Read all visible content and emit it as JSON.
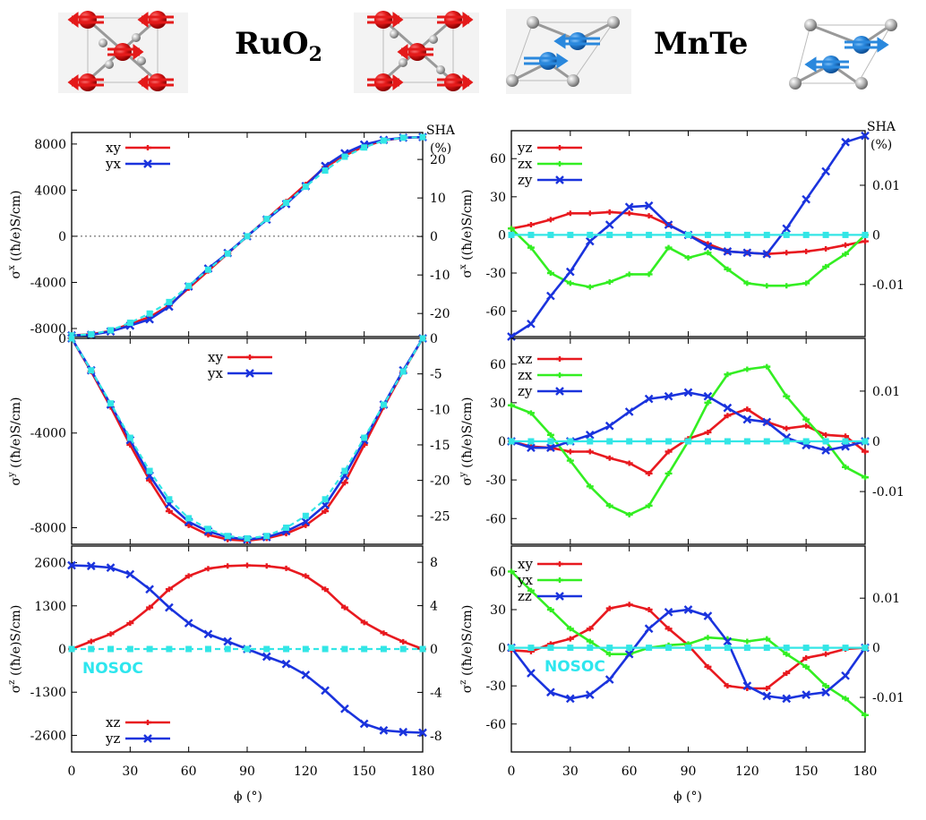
{
  "header": {
    "ruo2_label": "RuO",
    "ruo2_sub": "2",
    "mnte_label": "MnTe"
  },
  "colors": {
    "red": "#e8191f",
    "green": "#33ee22",
    "blue": "#1a33dd",
    "cyan": "#33e6e6"
  },
  "axes": {
    "x_label": "ϕ (°)",
    "x_ticks": [
      "0",
      "30",
      "60",
      "90",
      "120",
      "150",
      "180"
    ],
    "sha_label": "SHA",
    "sha_unit": "(%)",
    "nosoc_label": "NOSOC"
  },
  "chart_data": [
    {
      "id": "ruo2_x",
      "type": "line",
      "ylabel_sym": "σ",
      "ylabel_sup": "x",
      "ylabel_rest": " ((ħ/e)S/cm)",
      "ylim": [
        -8700,
        9000
      ],
      "y_ticks": [
        "-8000",
        "-4000",
        "0",
        "4000",
        "8000"
      ],
      "y_tick_values": [
        -8000,
        -4000,
        0,
        4000,
        8000
      ],
      "y2lim": [
        -26,
        27
      ],
      "y2_ticks": [
        "-20",
        "-10",
        "0",
        "10",
        "20"
      ],
      "y2_tick_values": [
        -20,
        -10,
        0,
        10,
        20
      ],
      "xlim": [
        0,
        180
      ],
      "x": [
        0,
        10,
        20,
        30,
        40,
        50,
        60,
        70,
        80,
        90,
        100,
        110,
        120,
        130,
        140,
        150,
        160,
        170,
        180
      ],
      "series": [
        {
          "name": "xy",
          "color": "red",
          "marker": "plus",
          "legend": true,
          "values": [
            -8600,
            -8500,
            -8200,
            -7600,
            -7000,
            -6000,
            -4500,
            -3000,
            -1500,
            0,
            1500,
            3000,
            4500,
            6000,
            7000,
            7800,
            8300,
            8550,
            8600
          ]
        },
        {
          "name": "yx",
          "color": "blue",
          "marker": "cross",
          "legend": true,
          "values": [
            -8600,
            -8550,
            -8250,
            -7750,
            -7200,
            -6100,
            -4350,
            -2800,
            -1450,
            0,
            1450,
            2800,
            4350,
            6100,
            7200,
            7950,
            8350,
            8550,
            8600
          ]
        },
        {
          "name": "NOSOC",
          "color": "cyan",
          "marker": "square",
          "dash": true,
          "legend": false,
          "values": [
            -8600,
            -8500,
            -8150,
            -7500,
            -6700,
            -5700,
            -4300,
            -2900,
            -1500,
            0,
            1500,
            2900,
            4300,
            5700,
            6900,
            7700,
            8300,
            8550,
            8600
          ]
        }
      ],
      "zero_line": "dotted"
    },
    {
      "id": "ruo2_y",
      "type": "line",
      "ylabel_sym": "σ",
      "ylabel_sup": "y",
      "ylabel_rest": " ((ħ/e)S/cm)",
      "ylim": [
        -8700,
        0
      ],
      "y_ticks": [
        "-8000",
        "-4000",
        "0"
      ],
      "y_tick_values": [
        -8000,
        -4000,
        0
      ],
      "y2lim": [
        -29,
        0
      ],
      "y2_ticks": [
        "-25",
        "-20",
        "-15",
        "-10",
        "-5",
        "0"
      ],
      "y2_tick_values": [
        -25,
        -20,
        -15,
        -10,
        -5,
        0
      ],
      "xlim": [
        0,
        180
      ],
      "x": [
        0,
        10,
        20,
        30,
        40,
        50,
        60,
        70,
        80,
        90,
        100,
        110,
        120,
        130,
        140,
        150,
        160,
        170,
        180
      ],
      "series": [
        {
          "name": "xy",
          "color": "red",
          "marker": "plus",
          "legend": true,
          "values": [
            0,
            -1400,
            -2900,
            -4500,
            -6000,
            -7300,
            -7900,
            -8300,
            -8500,
            -8550,
            -8450,
            -8250,
            -7900,
            -7300,
            -6100,
            -4500,
            -2900,
            -1400,
            0
          ]
        },
        {
          "name": "yx",
          "color": "blue",
          "marker": "cross",
          "legend": true,
          "values": [
            0,
            -1350,
            -2800,
            -4300,
            -5800,
            -7000,
            -7750,
            -8150,
            -8400,
            -8500,
            -8400,
            -8150,
            -7750,
            -7050,
            -5800,
            -4300,
            -2800,
            -1350,
            0
          ]
        },
        {
          "name": "NOSOC",
          "color": "cyan",
          "marker": "square",
          "dash": true,
          "legend": false,
          "values": [
            0,
            -1350,
            -2750,
            -4200,
            -5600,
            -6800,
            -7600,
            -8050,
            -8350,
            -8450,
            -8350,
            -8000,
            -7500,
            -6800,
            -5600,
            -4200,
            -2800,
            -1400,
            0
          ]
        }
      ]
    },
    {
      "id": "ruo2_z",
      "type": "line",
      "ylabel_sym": "σ",
      "ylabel_sup": "z",
      "ylabel_rest": " ((ħ/e)S/cm)",
      "ylim": [
        -3100,
        3100
      ],
      "y_ticks": [
        "-2600",
        "-1300",
        "0",
        "1300",
        "2600"
      ],
      "y_tick_values": [
        -2600,
        -1300,
        0,
        1300,
        2600
      ],
      "y2lim": [
        -9.5,
        9.5
      ],
      "y2_ticks": [
        "-8",
        "-4",
        "0",
        "4",
        "8"
      ],
      "y2_tick_values": [
        -8,
        -4,
        0,
        4,
        8
      ],
      "xlim": [
        0,
        180
      ],
      "x": [
        0,
        10,
        20,
        30,
        40,
        50,
        60,
        70,
        80,
        90,
        100,
        110,
        120,
        130,
        140,
        150,
        160,
        170,
        180
      ],
      "series": [
        {
          "name": "xz",
          "color": "red",
          "marker": "plus",
          "legend": true,
          "values": [
            0,
            230,
            450,
            780,
            1250,
            1800,
            2200,
            2420,
            2500,
            2520,
            2500,
            2430,
            2200,
            1800,
            1250,
            800,
            480,
            220,
            0
          ]
        },
        {
          "name": "yz",
          "color": "blue",
          "marker": "cross",
          "legend": true,
          "values": [
            2520,
            2500,
            2450,
            2250,
            1800,
            1250,
            780,
            450,
            230,
            0,
            -230,
            -450,
            -780,
            -1250,
            -1800,
            -2250,
            -2450,
            -2500,
            -2520
          ]
        },
        {
          "name": "NOSOC",
          "color": "cyan",
          "marker": "square",
          "dash": true,
          "legend": false,
          "values": [
            0,
            0,
            0,
            0,
            0,
            0,
            0,
            0,
            0,
            0,
            0,
            0,
            0,
            0,
            0,
            0,
            0,
            0,
            0
          ]
        }
      ],
      "nosoc_label": true,
      "legend_position": "bottom-left"
    },
    {
      "id": "mnte_x",
      "type": "line",
      "ylabel_sym": "σ",
      "ylabel_sup": "x",
      "ylabel_rest": " ((ħ/e)S/cm)",
      "ylim": [
        -80,
        82
      ],
      "y_ticks": [
        "-60",
        "-30",
        "0",
        "30",
        "60"
      ],
      "y_tick_values": [
        -60,
        -30,
        0,
        30,
        60
      ],
      "y2lim": [
        -0.0205,
        0.021
      ],
      "y2_ticks": [
        "-0.01",
        "0",
        "0.01"
      ],
      "y2_tick_values": [
        -0.01,
        0,
        0.01
      ],
      "xlim": [
        0,
        180
      ],
      "x": [
        0,
        10,
        20,
        30,
        40,
        50,
        60,
        70,
        80,
        90,
        100,
        110,
        120,
        130,
        140,
        150,
        160,
        170,
        180
      ],
      "series": [
        {
          "name": "yz",
          "color": "red",
          "marker": "plus",
          "legend": true,
          "values": [
            5,
            8,
            12,
            17,
            17,
            18,
            17,
            15,
            8,
            0,
            -7,
            -13,
            -14,
            -15,
            -14,
            -13,
            -11,
            -8,
            -5
          ]
        },
        {
          "name": "zx",
          "color": "green",
          "marker": "plus",
          "legend": true,
          "values": [
            5,
            -10,
            -30,
            -38,
            -41,
            -37,
            -31,
            -31,
            -10,
            -18,
            -14,
            -27,
            -38,
            -40,
            -40,
            -38,
            -25,
            -15,
            0
          ]
        },
        {
          "name": "zy",
          "color": "blue",
          "marker": "cross",
          "legend": true,
          "values": [
            -80,
            -70,
            -48,
            -29,
            -5,
            8,
            22,
            23,
            8,
            0,
            -9,
            -13,
            -14,
            -15,
            5,
            28,
            50,
            73,
            78
          ]
        },
        {
          "name": "NOSOC",
          "color": "cyan",
          "marker": "square",
          "legend": false,
          "values": [
            0,
            0,
            0,
            0,
            0,
            0,
            0,
            0,
            0,
            0,
            0,
            0,
            0,
            0,
            0,
            0,
            0,
            0,
            0
          ]
        }
      ]
    },
    {
      "id": "mnte_y",
      "type": "line",
      "ylabel_sym": "σ",
      "ylabel_sup": "y",
      "ylabel_rest": " ((ħ/e)S/cm)",
      "ylim": [
        -80,
        80
      ],
      "y_ticks": [
        "-60",
        "-30",
        "0",
        "30",
        "60"
      ],
      "y_tick_values": [
        -60,
        -30,
        0,
        30,
        60
      ],
      "y2lim": [
        -0.0205,
        0.0205
      ],
      "y2_ticks": [
        "-0.01",
        "0",
        "0.01"
      ],
      "y2_tick_values": [
        -0.01,
        0,
        0.01
      ],
      "xlim": [
        0,
        180
      ],
      "x": [
        0,
        10,
        20,
        30,
        40,
        50,
        60,
        70,
        80,
        90,
        100,
        110,
        120,
        130,
        140,
        150,
        160,
        170,
        180
      ],
      "series": [
        {
          "name": "xz",
          "color": "red",
          "marker": "plus",
          "legend": true,
          "values": [
            0,
            -4,
            -5,
            -8,
            -8,
            -13,
            -17,
            -25,
            -8,
            2,
            7,
            20,
            25,
            15,
            10,
            12,
            5,
            4,
            -8
          ]
        },
        {
          "name": "zx",
          "color": "green",
          "marker": "plus",
          "legend": true,
          "values": [
            28,
            22,
            5,
            -15,
            -35,
            -50,
            -57,
            -50,
            -25,
            0,
            30,
            52,
            56,
            58,
            35,
            17,
            0,
            -20,
            -28
          ]
        },
        {
          "name": "zy",
          "color": "blue",
          "marker": "cross",
          "legend": true,
          "values": [
            0,
            -5,
            -5,
            0,
            5,
            12,
            23,
            33,
            35,
            38,
            35,
            26,
            17,
            15,
            3,
            -3,
            -7,
            -4,
            0
          ]
        },
        {
          "name": "NOSOC",
          "color": "cyan",
          "marker": "square",
          "legend": false,
          "values": [
            0,
            0,
            0,
            0,
            0,
            0,
            0,
            0,
            0,
            0,
            0,
            0,
            0,
            0,
            0,
            0,
            0,
            0,
            0
          ]
        }
      ]
    },
    {
      "id": "mnte_z",
      "type": "line",
      "ylabel_sym": "σ",
      "ylabel_sup": "z",
      "ylabel_rest": " ((ħ/e)S/cm)",
      "ylim": [
        -82,
        80
      ],
      "y_ticks": [
        "-60",
        "-30",
        "0",
        "30",
        "60"
      ],
      "y_tick_values": [
        -60,
        -30,
        0,
        30,
        60
      ],
      "y2lim": [
        -0.021,
        0.0205
      ],
      "y2_ticks": [
        "-0.01",
        "0",
        "0.01"
      ],
      "y2_tick_values": [
        -0.01,
        0,
        0.01
      ],
      "xlim": [
        0,
        180
      ],
      "x": [
        0,
        10,
        20,
        30,
        40,
        50,
        60,
        70,
        80,
        90,
        100,
        110,
        120,
        130,
        140,
        150,
        160,
        170,
        180
      ],
      "series": [
        {
          "name": "xy",
          "color": "red",
          "marker": "plus",
          "legend": true,
          "values": [
            -2,
            -3,
            3,
            7,
            15,
            31,
            34,
            30,
            15,
            2,
            -15,
            -30,
            -32,
            -32,
            -20,
            -8,
            -5,
            -1,
            0
          ]
        },
        {
          "name": "yx",
          "color": "green",
          "marker": "plus",
          "legend": true,
          "values": [
            60,
            45,
            30,
            15,
            5,
            -5,
            -5,
            0,
            2,
            3,
            8,
            7,
            5,
            7,
            -5,
            -15,
            -30,
            -40,
            -53
          ]
        },
        {
          "name": "zz",
          "color": "blue",
          "marker": "cross",
          "legend": true,
          "values": [
            0,
            -20,
            -35,
            -40,
            -37,
            -25,
            -5,
            15,
            28,
            30,
            25,
            5,
            -30,
            -38,
            -40,
            -37,
            -35,
            -22,
            0
          ]
        },
        {
          "name": "NOSOC",
          "color": "cyan",
          "marker": "square",
          "legend": false,
          "values": [
            0,
            0,
            0,
            0,
            0,
            0,
            0,
            0,
            0,
            0,
            0,
            0,
            0,
            0,
            0,
            0,
            0,
            0,
            0
          ]
        }
      ],
      "nosoc_label": true
    }
  ]
}
